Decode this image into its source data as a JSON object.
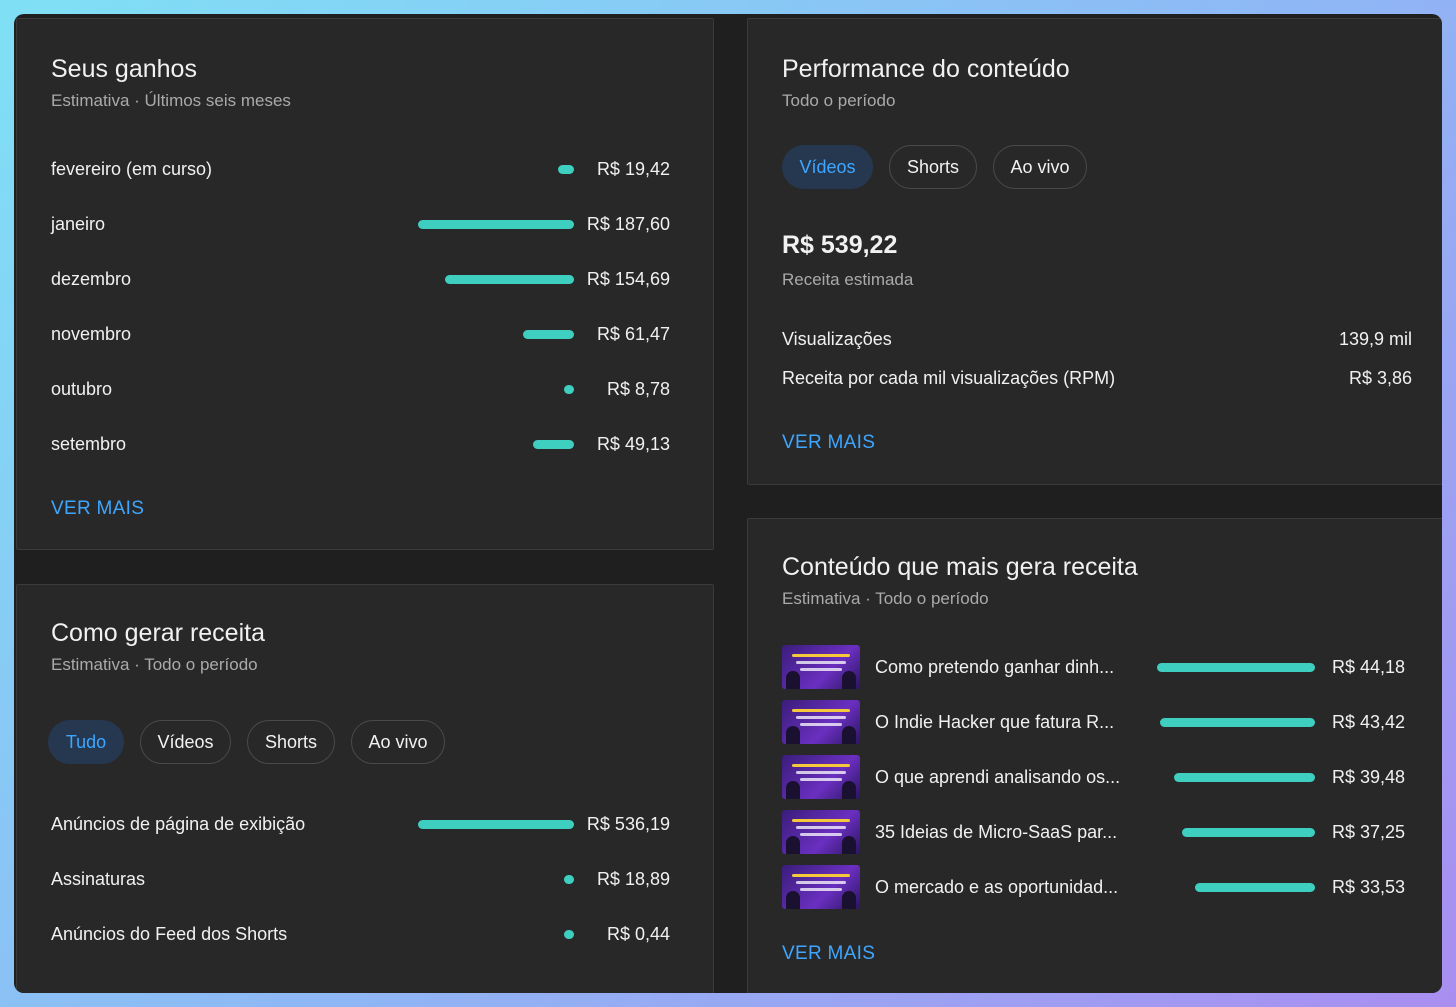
{
  "earnings": {
    "title": "Seus ganhos",
    "subtitle": "Estimativa · Últimos seis meses",
    "rows": [
      {
        "label": "fevereiro (em curso)",
        "value": "R$ 19,42",
        "amount": 19.42
      },
      {
        "label": "janeiro",
        "value": "R$ 187,60",
        "amount": 187.6
      },
      {
        "label": "dezembro",
        "value": "R$ 154,69",
        "amount": 154.69
      },
      {
        "label": "novembro",
        "value": "R$ 61,47",
        "amount": 61.47
      },
      {
        "label": "outubro",
        "value": "R$ 8,78",
        "amount": 8.78
      },
      {
        "label": "setembro",
        "value": "R$ 49,13",
        "amount": 49.13
      }
    ],
    "more": "VER MAIS"
  },
  "how": {
    "title": "Como gerar receita",
    "subtitle": "Estimativa · Todo o período",
    "chips": [
      {
        "label": "Tudo",
        "active": true
      },
      {
        "label": "Vídeos",
        "active": false
      },
      {
        "label": "Shorts",
        "active": false
      },
      {
        "label": "Ao vivo",
        "active": false
      }
    ],
    "rows": [
      {
        "label": "Anúncios de página de exibição",
        "value": "R$ 536,19",
        "amount": 536.19
      },
      {
        "label": "Assinaturas",
        "value": "R$ 18,89",
        "amount": 18.89
      },
      {
        "label": "Anúncios do Feed dos Shorts",
        "value": "R$ 0,44",
        "amount": 0.44
      }
    ]
  },
  "performance": {
    "title": "Performance do conteúdo",
    "subtitle": "Todo o período",
    "chips": [
      {
        "label": "Vídeos",
        "active": true
      },
      {
        "label": "Shorts",
        "active": false
      },
      {
        "label": "Ao vivo",
        "active": false
      }
    ],
    "revenue": "R$ 539,22",
    "revenue_label": "Receita estimada",
    "stats": [
      {
        "label": "Visualizações",
        "value": "139,9 mil"
      },
      {
        "label": "Receita por cada mil visualizações (RPM)",
        "value": "R$ 3,86"
      }
    ],
    "more": "VER MAIS"
  },
  "top_content": {
    "title": "Conteúdo que mais gera receita",
    "subtitle": "Estimativa · Todo o período",
    "rows": [
      {
        "label": "Como pretendo ganhar dinh...",
        "value": "R$ 44,18",
        "amount": 44.18
      },
      {
        "label": "O Indie Hacker que fatura R...",
        "value": "R$ 43,42",
        "amount": 43.42
      },
      {
        "label": "O que aprendi analisando os...",
        "value": "R$ 39,48",
        "amount": 39.48
      },
      {
        "label": "35 Ideias de Micro-SaaS par...",
        "value": "R$ 37,25",
        "amount": 37.25
      },
      {
        "label": "O mercado e as oportunidad...",
        "value": "R$ 33,53",
        "amount": 33.53
      }
    ],
    "more": "VER MAIS"
  },
  "colors": {
    "accent": "#3ea6ff",
    "bar": "#3ecfc0",
    "card": "#282828",
    "chip_active_bg": "#263850"
  }
}
